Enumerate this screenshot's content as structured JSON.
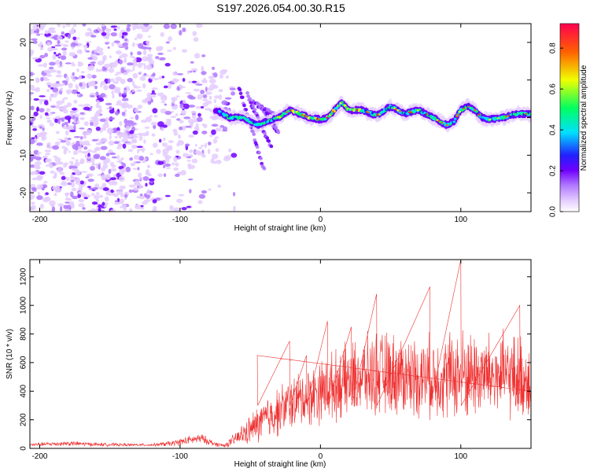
{
  "title": "S197.2026.054.00.30.R15",
  "chart_data": [
    {
      "type": "heatmap",
      "name": "spectrogram",
      "xlabel": "Height of straight line (km)",
      "ylabel": "Frequency (Hz)",
      "xlim": [
        -207,
        150
      ],
      "ylim": [
        -25,
        25
      ],
      "xticks": [
        -200,
        -100,
        0,
        100
      ],
      "yticks": [
        -20,
        -10,
        0,
        10,
        20
      ],
      "colorbar": {
        "label": "Normalized spectral amplitude",
        "range": [
          0,
          0.92
        ],
        "ticks": [
          0.0,
          0.2,
          0.4,
          0.6,
          0.8
        ],
        "colors": [
          "#ffffff",
          "#e4ccff",
          "#b078ff",
          "#7000ff",
          "#2020ff",
          "#00e0ff",
          "#00ff60",
          "#f0ff00",
          "#ff6000",
          "#ff0050"
        ]
      },
      "track": {
        "description_points_x": [
          -72,
          -65,
          -55,
          -45,
          -38,
          -30,
          -22,
          -15,
          -8,
          0,
          5,
          10,
          15,
          20,
          30,
          40,
          50,
          60,
          70,
          80,
          90,
          95,
          100,
          105,
          110,
          115,
          120,
          130,
          140,
          150
        ],
        "description_points_y": [
          1.5,
          0,
          0,
          -2,
          -1,
          0,
          2,
          1,
          0,
          -0.5,
          0,
          2,
          4,
          2,
          2,
          0.5,
          3,
          1,
          2,
          0,
          -2,
          -1,
          2,
          3,
          2,
          0,
          -0.5,
          0,
          1,
          1
        ]
      }
    },
    {
      "type": "line",
      "name": "snr",
      "xlabel": "Height of straight line (km)",
      "ylabel": "SNR (10 * v/v)",
      "xlim": [
        -207,
        150
      ],
      "ylim": [
        0,
        1320
      ],
      "xticks": [
        -200,
        -100,
        0,
        100
      ],
      "yticks": [
        0,
        200,
        400,
        600,
        800,
        1000,
        1200
      ],
      "color": "#ef3030",
      "envelope_x": [
        -207,
        -180,
        -160,
        -140,
        -120,
        -105,
        -95,
        -85,
        -75,
        -68,
        -60,
        -50,
        -40,
        -30,
        -20,
        -10,
        0,
        10,
        20,
        30,
        40,
        50,
        60,
        80,
        100,
        120,
        140,
        150
      ],
      "envelope_mean": [
        25,
        35,
        28,
        25,
        24,
        35,
        55,
        70,
        30,
        20,
        70,
        130,
        200,
        260,
        320,
        360,
        400,
        440,
        470,
        500,
        520,
        520,
        510,
        500,
        520,
        510,
        500,
        480
      ],
      "envelope_amp": [
        15,
        20,
        15,
        12,
        10,
        25,
        35,
        40,
        20,
        15,
        60,
        120,
        180,
        200,
        220,
        240,
        260,
        280,
        300,
        320,
        340,
        340,
        330,
        330,
        380,
        350,
        350,
        320
      ],
      "peaks": [
        [
          -45,
          650
        ],
        [
          -22,
          750
        ],
        [
          -10,
          650
        ],
        [
          5,
          890
        ],
        [
          22,
          850
        ],
        [
          40,
          1080
        ],
        [
          78,
          1130
        ],
        [
          100,
          1320
        ],
        [
          142,
          1000
        ]
      ]
    }
  ]
}
